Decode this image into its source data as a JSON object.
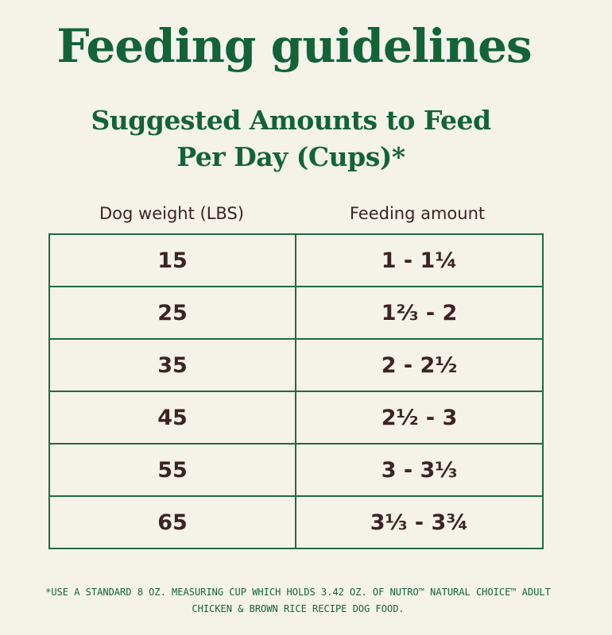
{
  "title": "Feeding guidelines",
  "subtitle": {
    "line1": "Suggested Amounts to Feed",
    "line2": "Per Day (Cups)*"
  },
  "table": {
    "headers": {
      "weight": "Dog weight (LBS)",
      "amount": "Feeding amount"
    },
    "rows": [
      {
        "weight": "15",
        "amount": "1 - 1¼"
      },
      {
        "weight": "25",
        "amount": "1⅔ - 2"
      },
      {
        "weight": "35",
        "amount": "2 - 2½"
      },
      {
        "weight": "45",
        "amount": "2½ - 3"
      },
      {
        "weight": "55",
        "amount": "3 - 3⅓"
      },
      {
        "weight": "65",
        "amount": "3⅓ - 3¾"
      }
    ]
  },
  "footnote": {
    "line1": "*USE A STANDARD 8 OZ. MEASURING CUP WHICH HOLDS 3.42 OZ. OF NUTRO™ NATURAL CHOICE™ ADULT",
    "line2": "CHICKEN & BROWN RICE RECIPE DOG FOOD."
  },
  "colors": {
    "background": "#f4f2e9",
    "brand_green": "#136339",
    "text_dark": "#3c2326",
    "table_border": "#1f6a45"
  }
}
